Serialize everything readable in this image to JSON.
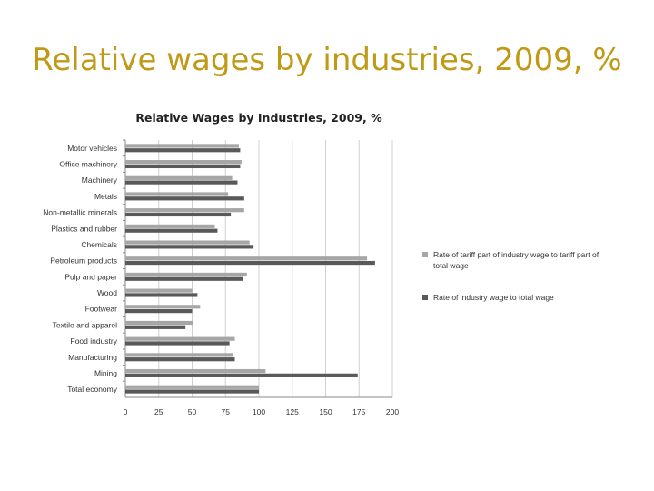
{
  "slide": {
    "title": "Relative wages by industries, 2009, %"
  },
  "chart_data": {
    "type": "bar",
    "orientation": "horizontal",
    "title": "Relative Wages by Industries, 2009, %",
    "categories": [
      "Motor vehicles",
      "Office machinery",
      "Machinery",
      "Metals",
      "Non-metallic minerals",
      "Plastics and rubber",
      "Chemicals",
      "Petroleum products",
      "Pulp and paper",
      "Wood",
      "Footwear",
      "Textile and apparel",
      "Food industry",
      "Manufacturing",
      "Mining",
      "Total economy"
    ],
    "series": [
      {
        "name": "Rate of tariff part of industry wage to tariff part of total wage",
        "color": "#a6a6a6",
        "values": [
          85,
          87,
          80,
          77,
          89,
          67,
          93,
          181,
          91,
          50,
          56,
          51,
          82,
          81,
          105,
          100
        ]
      },
      {
        "name": "Rate of industry wage to total wage",
        "color": "#595959",
        "values": [
          86,
          86,
          84,
          89,
          79,
          69,
          96,
          187,
          88,
          54,
          50,
          45,
          78,
          82,
          174,
          100
        ]
      }
    ],
    "xlim": [
      0,
      200
    ],
    "xticks": [
      "0",
      "25",
      "50",
      "75",
      "100",
      "125",
      "150",
      "175",
      "200"
    ],
    "grid": true,
    "legend_position": "right"
  }
}
